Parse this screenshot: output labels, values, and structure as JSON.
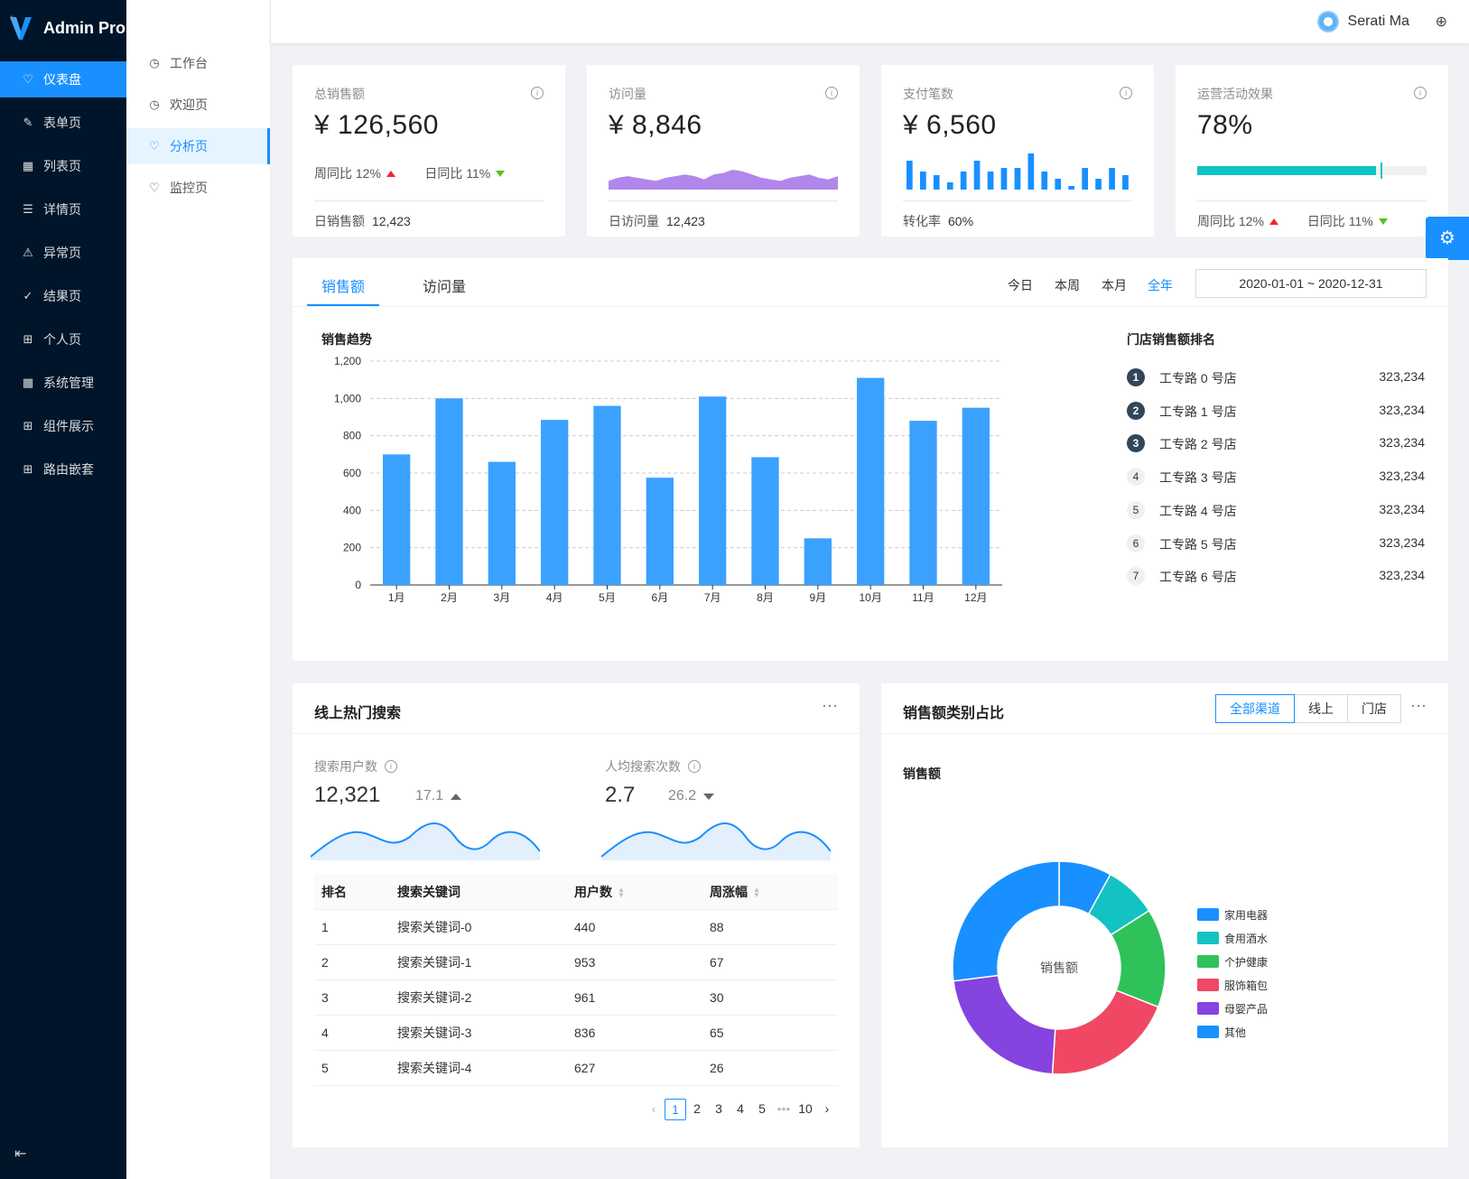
{
  "app": {
    "title": "Admin Pro"
  },
  "sidebar": {
    "items": [
      {
        "label": "仪表盘",
        "icon": "heart-icon",
        "glyph": "♡"
      },
      {
        "label": "表单页",
        "icon": "edit-icon",
        "glyph": "✎"
      },
      {
        "label": "列表页",
        "icon": "table-icon",
        "glyph": "▦"
      },
      {
        "label": "详情页",
        "icon": "list-icon",
        "glyph": "☰"
      },
      {
        "label": "异常页",
        "icon": "warning-icon",
        "glyph": "⚠"
      },
      {
        "label": "结果页",
        "icon": "check-circle-icon",
        "glyph": "✓"
      },
      {
        "label": "个人页",
        "icon": "appstore-icon",
        "glyph": "⊞"
      },
      {
        "label": "系统管理",
        "icon": "table-icon",
        "glyph": "▦"
      },
      {
        "label": "组件展示",
        "icon": "appstore-icon",
        "glyph": "⊞"
      },
      {
        "label": "路由嵌套",
        "icon": "appstore-icon",
        "glyph": "⊞"
      }
    ],
    "active_index": 0
  },
  "submenu": {
    "items": [
      {
        "label": "工作台",
        "glyph": "◷"
      },
      {
        "label": "欢迎页",
        "glyph": "◷"
      },
      {
        "label": "分析页",
        "glyph": "♡"
      },
      {
        "label": "监控页",
        "glyph": "♡"
      }
    ],
    "active_index": 2
  },
  "header": {
    "user_name": "Serati Ma"
  },
  "stats": [
    {
      "title": "总销售额",
      "value": "¥ 126,560",
      "week_label": "周同比 12%",
      "day_label": "日同比 11%",
      "foot_label": "日销售额",
      "foot_value": "12,423"
    },
    {
      "title": "访问量",
      "value": "¥ 8,846",
      "foot_label": "日访问量",
      "foot_value": "12,423",
      "area": [
        2,
        4,
        5,
        4,
        3,
        2,
        4,
        5,
        6,
        5,
        3,
        6,
        7,
        9,
        8,
        6,
        4,
        3,
        2,
        4,
        5,
        6,
        4,
        3,
        5
      ]
    },
    {
      "title": "支付笔数",
      "value": "¥ 6,560",
      "foot_label": "转化率",
      "foot_value": "60%",
      "bars": [
        8,
        5,
        4,
        2,
        5,
        8,
        5,
        6,
        6,
        10,
        5,
        3,
        1,
        6,
        3,
        6,
        4
      ]
    },
    {
      "title": "运营活动效果",
      "value": "78%",
      "progress": 78,
      "target": 80,
      "week_label": "周同比 12%",
      "day_label": "日同比 11%"
    }
  ],
  "sales": {
    "tabs": [
      "销售额",
      "访问量"
    ],
    "ranges": [
      "今日",
      "本周",
      "本月",
      "全年"
    ],
    "active_range": 3,
    "date_range": "2020-01-01  ~  2020-12-31",
    "chart_title": "销售趋势",
    "rank_title": "门店销售额排名",
    "ranking": [
      {
        "rank": "1",
        "name": "工专路 0 号店",
        "value": "323,234"
      },
      {
        "rank": "2",
        "name": "工专路 1 号店",
        "value": "323,234"
      },
      {
        "rank": "3",
        "name": "工专路 2 号店",
        "value": "323,234"
      },
      {
        "rank": "4",
        "name": "工专路 3 号店",
        "value": "323,234"
      },
      {
        "rank": "5",
        "name": "工专路 4 号店",
        "value": "323,234"
      },
      {
        "rank": "6",
        "name": "工专路 5 号店",
        "value": "323,234"
      },
      {
        "rank": "7",
        "name": "工专路 6 号店",
        "value": "323,234"
      }
    ]
  },
  "chart_data": [
    {
      "type": "bar",
      "title": "销售趋势",
      "categories": [
        "1月",
        "2月",
        "3月",
        "4月",
        "5月",
        "6月",
        "7月",
        "8月",
        "9月",
        "10月",
        "11月",
        "12月"
      ],
      "values": [
        700,
        1000,
        660,
        885,
        960,
        575,
        1010,
        685,
        250,
        1110,
        880,
        950
      ],
      "ylim": [
        0,
        1200
      ],
      "yticks": [
        "0",
        "200",
        "400",
        "600",
        "800",
        "1,000",
        "1,200"
      ],
      "color": "#3ba1ff",
      "grid": true
    },
    {
      "type": "pie",
      "title": "销售额",
      "center_label": "销售额",
      "labels": [
        "家用电器",
        "食用酒水",
        "个护健康",
        "服饰箱包",
        "母婴产品",
        "其他"
      ],
      "values": [
        8,
        8,
        15,
        20,
        22,
        27
      ],
      "colors": [
        "#1890ff",
        "#13c2c2",
        "#2fc25b",
        "#f04864",
        "#8543e0",
        "#1890ff"
      ]
    }
  ],
  "hot_search": {
    "title": "线上热门搜索",
    "more": "···",
    "users_label": "搜索用户数",
    "users_value": "12,321",
    "users_change": "17.1",
    "avg_label": "人均搜索次数",
    "avg_value": "2.7",
    "avg_change": "26.2",
    "columns": [
      "排名",
      "搜索关键词",
      "用户数",
      "周涨幅"
    ],
    "rows": [
      [
        "1",
        "搜索关键词-0",
        "440",
        "88"
      ],
      [
        "2",
        "搜索关键词-1",
        "953",
        "67"
      ],
      [
        "3",
        "搜索关键词-2",
        "961",
        "30"
      ],
      [
        "4",
        "搜索关键词-3",
        "836",
        "65"
      ],
      [
        "5",
        "搜索关键词-4",
        "627",
        "26"
      ]
    ],
    "pages": [
      "1",
      "2",
      "3",
      "4",
      "5",
      "•••",
      "10"
    ]
  },
  "category": {
    "title": "销售额类别占比",
    "more": "···",
    "segments": [
      "全部渠道",
      "线上",
      "门店"
    ],
    "subtitle": "销售额"
  },
  "colors": {
    "primary": "#1890ff",
    "sidebar": "#001529",
    "up": "#f5222d",
    "down": "#52c41a",
    "teal": "#13c2c2"
  }
}
